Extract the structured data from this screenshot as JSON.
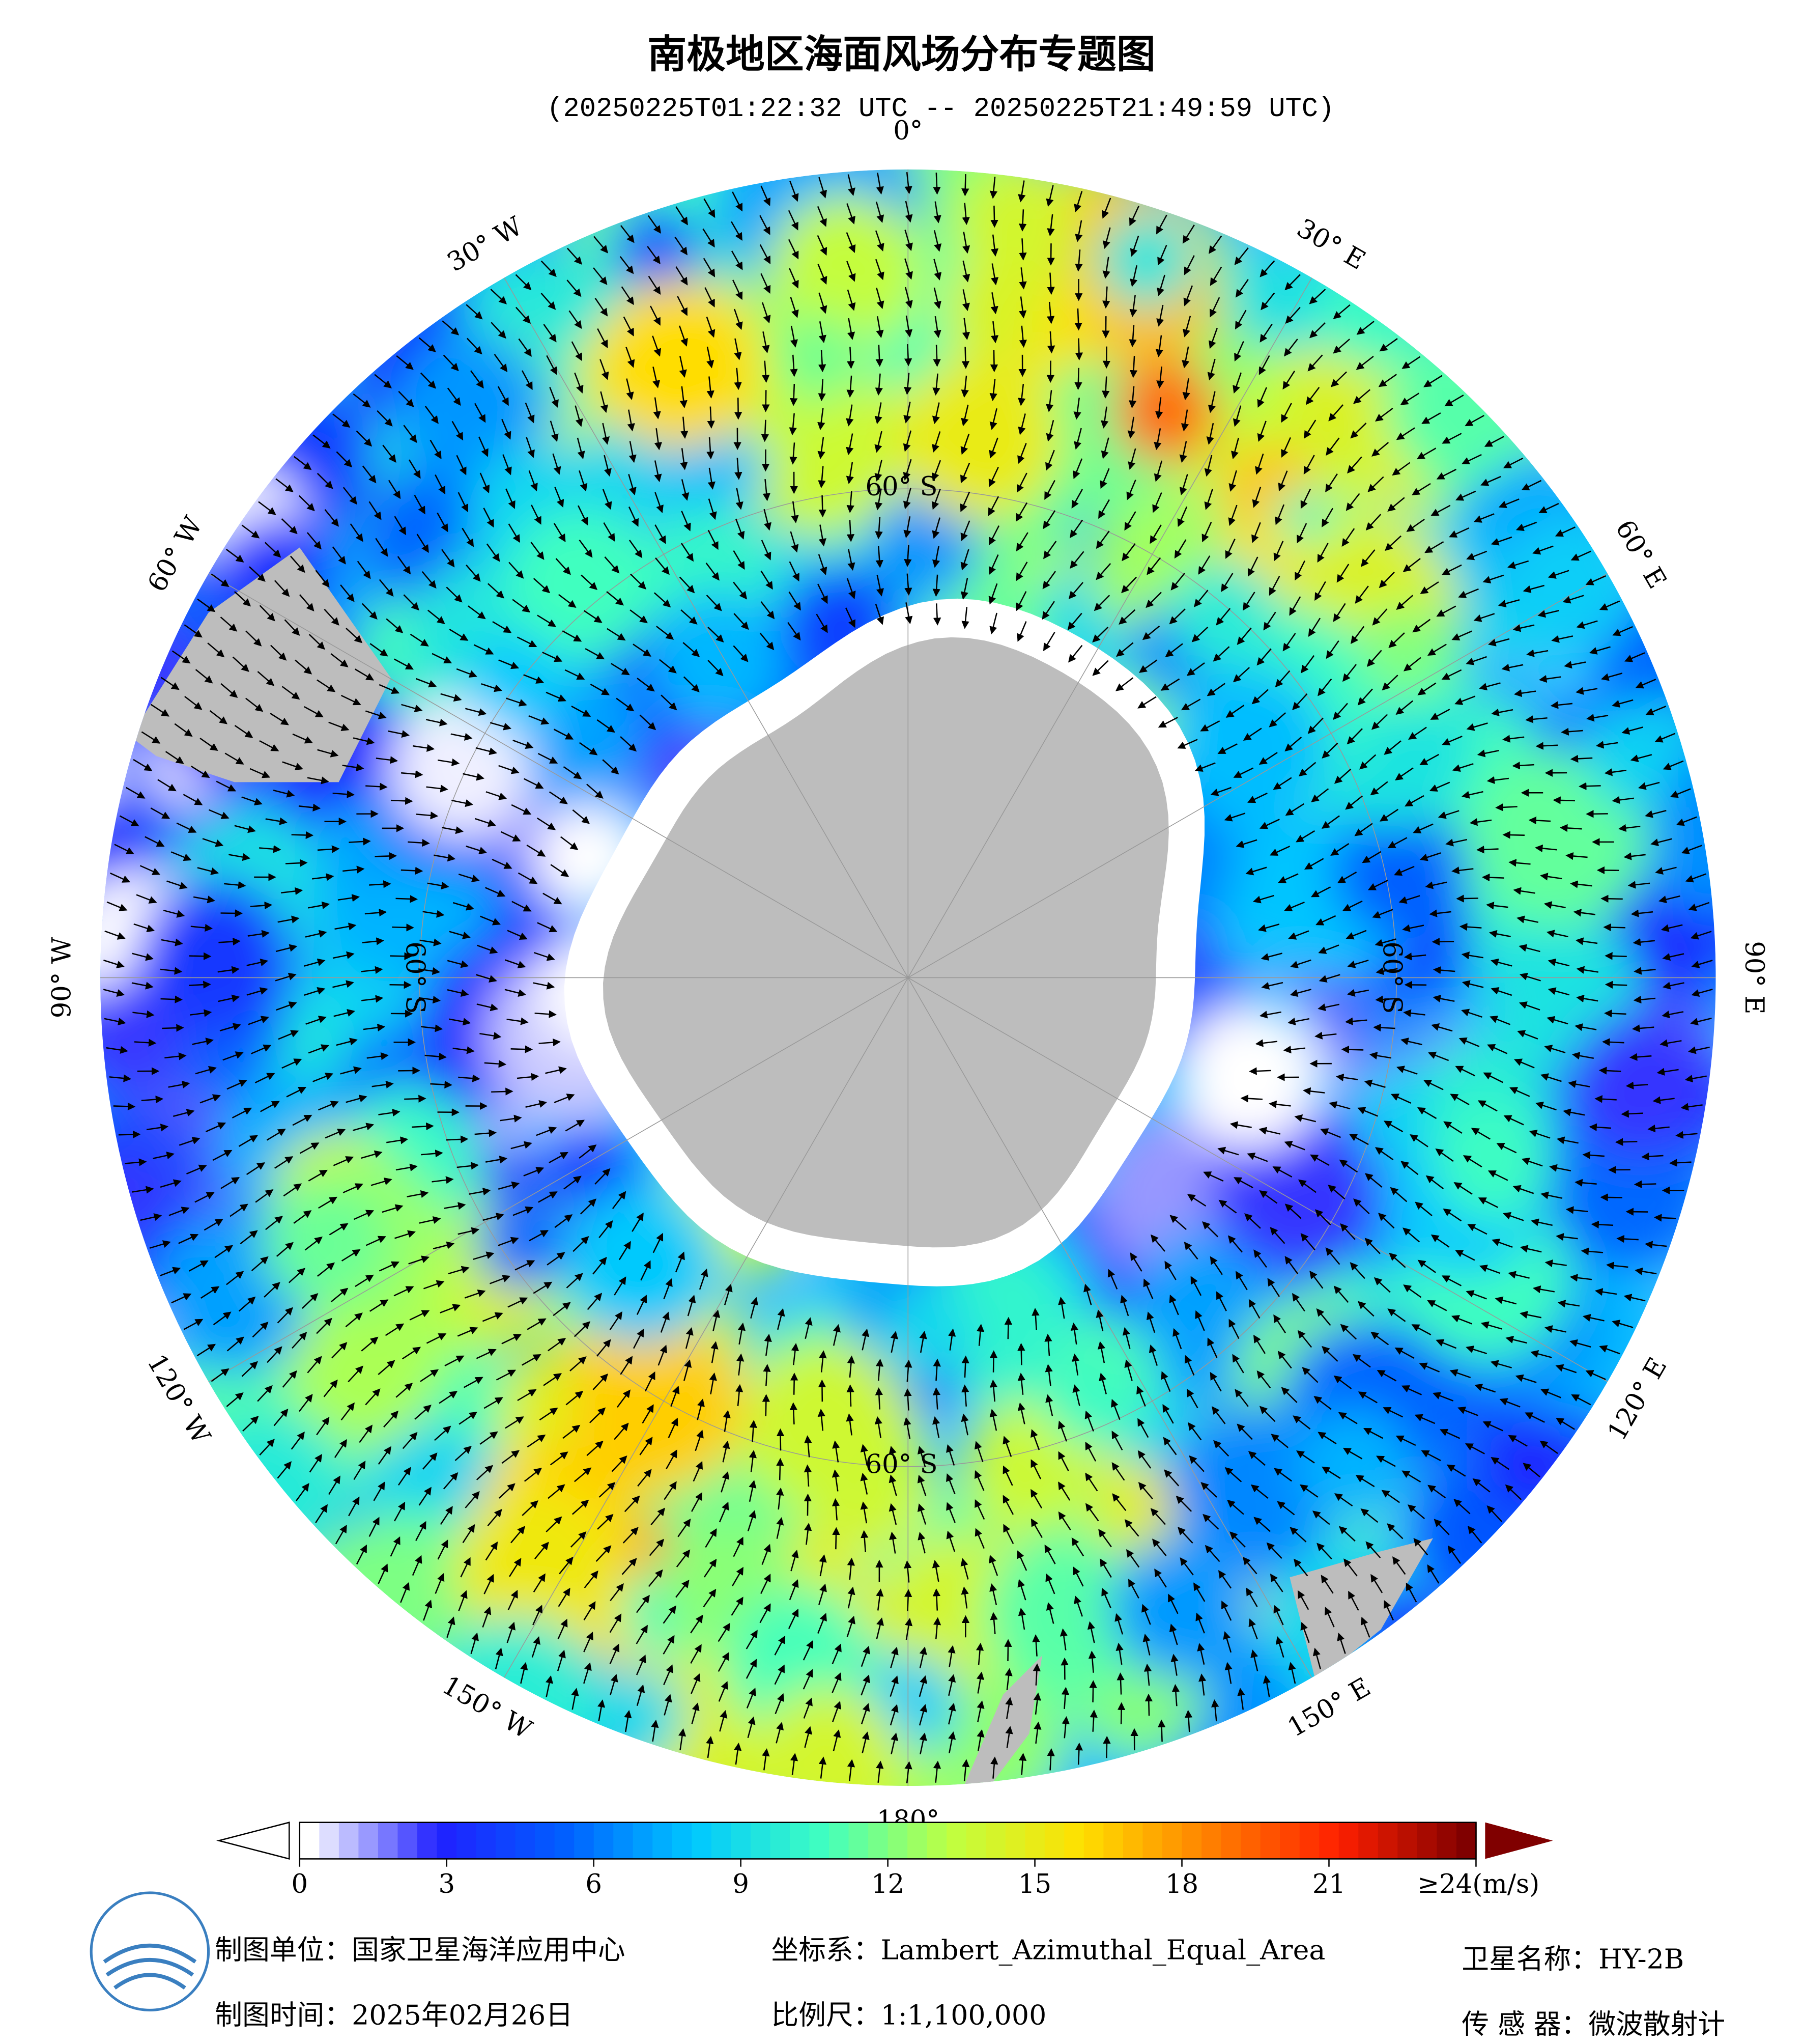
{
  "title": "南极地区海面风场分布专题图",
  "subtitle": "(20250225T01:22:32 UTC -- 20250225T21:49:59 UTC)",
  "map": {
    "projection": "Lambert_Azimuthal_Equal_Area",
    "longitude_labels": [
      "0°",
      "30° E",
      "60° E",
      "90° E",
      "120° E",
      "150° E",
      "180°",
      "150° W",
      "120° W",
      "90° W",
      "60° W",
      "30° W"
    ],
    "latitude_labels": [
      "60° S",
      "60° S",
      "60° S",
      "60° S"
    ]
  },
  "colorbar": {
    "range": [
      0,
      24
    ],
    "ticks": [
      0,
      3,
      6,
      9,
      12,
      15,
      18,
      21,
      {
        "value": 24,
        "label": "≥24(m/s)"
      }
    ],
    "colors": [
      "#ffffff",
      "#2020ff",
      "#0060ff",
      "#00c8ff",
      "#40ffc0",
      "#c0ff40",
      "#ffe000",
      "#ff8000",
      "#ff2000",
      "#800000"
    ]
  },
  "footer": {
    "unit": "制图单位：国家卫星海洋应用中心",
    "date": "制图时间：2025年02月26日",
    "coordinate_system": "坐标系：Lambert_Azimuthal_Equal_Area",
    "scale": "比例尺：1:1,100,000",
    "satellite": "卫星名称：HY-2B",
    "sensor": "传 感 器：微波散射计"
  }
}
